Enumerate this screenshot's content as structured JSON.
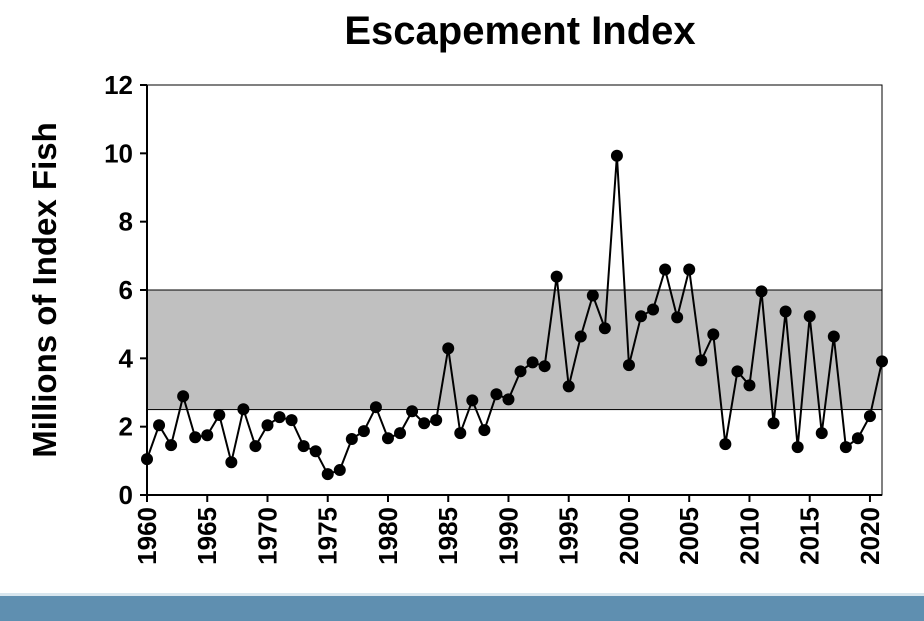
{
  "chart_data": {
    "type": "line",
    "title": "Escapement Index",
    "y_label": "Millions of Index Fish",
    "x": [
      1960,
      1961,
      1962,
      1963,
      1964,
      1965,
      1966,
      1967,
      1968,
      1969,
      1970,
      1971,
      1972,
      1973,
      1974,
      1975,
      1976,
      1977,
      1978,
      1979,
      1980,
      1981,
      1982,
      1983,
      1984,
      1985,
      1986,
      1987,
      1988,
      1989,
      1990,
      1991,
      1992,
      1993,
      1994,
      1995,
      1996,
      1997,
      1998,
      1999,
      2000,
      2001,
      2002,
      2003,
      2004,
      2005,
      2006,
      2007,
      2008,
      2009,
      2010,
      2011,
      2012,
      2013,
      2014,
      2015,
      2016,
      2017,
      2018,
      2019,
      2020,
      2021
    ],
    "series": [
      {
        "color": "#000000",
        "values": [
          1.05,
          2.04,
          1.46,
          2.89,
          1.69,
          1.75,
          2.34,
          0.96,
          2.51,
          1.43,
          2.04,
          2.28,
          2.19,
          1.43,
          1.28,
          0.61,
          0.73,
          1.64,
          1.87,
          2.57,
          1.66,
          1.81,
          2.45,
          2.1,
          2.19,
          4.29,
          1.81,
          2.77,
          1.9,
          2.95,
          2.8,
          3.62,
          3.88,
          3.77,
          6.39,
          3.18,
          4.64,
          5.84,
          4.88,
          9.93,
          3.8,
          5.23,
          5.43,
          6.6,
          5.2,
          6.6,
          3.94,
          4.7,
          1.49,
          3.62,
          3.21,
          5.96,
          2.1,
          5.37,
          1.4,
          5.23,
          1.81,
          4.64,
          1.4,
          1.66,
          2.31,
          3.91
        ]
      }
    ],
    "shaded_range": [
      2.5,
      6
    ],
    "shaded_color": "#c0c0c0",
    "xlim": [
      1960,
      2021
    ],
    "xticks": [
      1960,
      1965,
      1970,
      1975,
      1980,
      1985,
      1990,
      1995,
      2000,
      2005,
      2010,
      2015,
      2020
    ],
    "ylim": [
      0,
      12
    ],
    "yticks": [
      0,
      2,
      4,
      6,
      8,
      10,
      12
    ]
  }
}
